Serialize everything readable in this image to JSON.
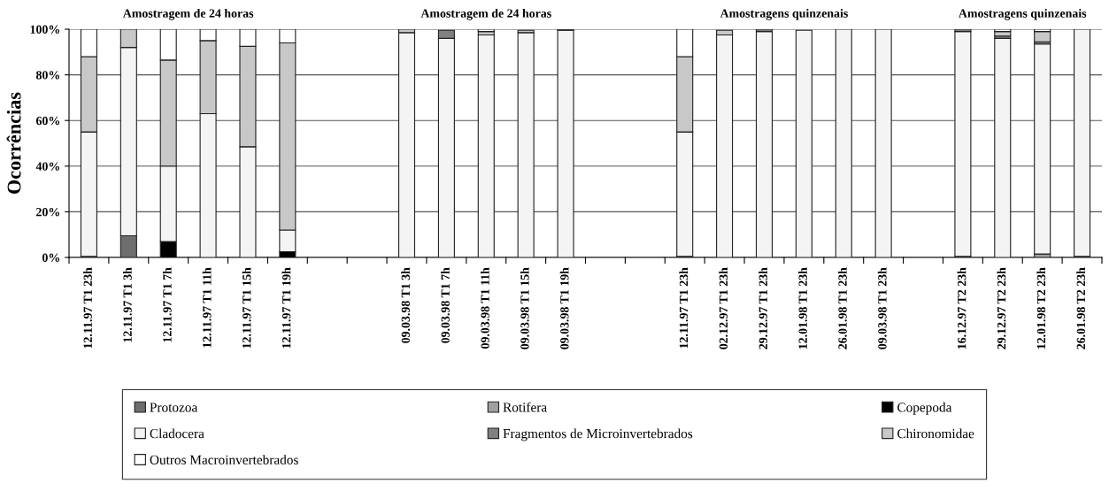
{
  "chart_data": {
    "type": "bar",
    "stacked": true,
    "ylabel": "Ocorrências",
    "annotations": [
      "Amostragem de 24 horas",
      "Amostragem de 24 horas",
      "Amostragens quinzenais",
      "Amostragens quinzenais"
    ],
    "categories": [
      "12.11.97 T1 23h",
      "12.11.97 T1 3h",
      "12.11.97 T1 7h",
      "12.11.97 T1 11h",
      "12.11.97 T1 15h",
      "12.11.97 T1 19h",
      null,
      null,
      "09.03.98 T1 3h",
      "09.03.98 T1 7h",
      "09.03.98 T1 11h",
      "09.03.98 T1 15h",
      "09.03.98 T1 19h",
      null,
      null,
      "12.11.97 T1 23h",
      "02.12.97 T1 23h",
      "29.12.97 T1 23h",
      "12.01.98 T1 23h",
      "26.01.98 T1 23h",
      "09.03.98 T1 23h",
      null,
      "16.12.97 T2 23h",
      "29.12.97 T2 23h",
      "12.01.98 T2 23h",
      "26.01.98 T2 23h"
    ],
    "series": [
      {
        "name": "Protozoa",
        "color": "#6e6e6e",
        "values": [
          0.5,
          9.5,
          0,
          0,
          0,
          0,
          null,
          null,
          0,
          0,
          0,
          0,
          0,
          null,
          null,
          0.5,
          0,
          0,
          0,
          0,
          0,
          null,
          0.5,
          0,
          0,
          0.5
        ]
      },
      {
        "name": "Rotifera",
        "color": "#a0a0a0",
        "values": [
          0,
          0,
          0,
          0,
          0,
          0,
          null,
          null,
          0,
          0,
          0,
          0,
          0,
          null,
          null,
          0,
          0,
          0,
          0,
          0,
          0,
          null,
          0,
          0,
          1.5,
          0
        ]
      },
      {
        "name": "Copepoda",
        "color": "#000000",
        "values": [
          0,
          0,
          7,
          0,
          0,
          2.5,
          null,
          null,
          0,
          0,
          0,
          0,
          0,
          null,
          null,
          0,
          0,
          0,
          0,
          0,
          0,
          null,
          0,
          0,
          0,
          0
        ]
      },
      {
        "name": "Cladocera",
        "color": "#f4f4f4",
        "values": [
          54.5,
          82.5,
          33,
          63,
          48.5,
          9.5,
          null,
          null,
          98.5,
          96,
          97.5,
          98.5,
          99.5,
          null,
          null,
          54.5,
          97.5,
          99,
          99.5,
          100,
          100,
          null,
          98.5,
          96,
          92,
          99.5
        ]
      },
      {
        "name": "Fragmentos de Microinvertebrados",
        "color": "#808080",
        "values": [
          0,
          0,
          0,
          0,
          0,
          0,
          null,
          null,
          0,
          3.5,
          0,
          0,
          0.5,
          null,
          null,
          0,
          0,
          1,
          0,
          0,
          0,
          null,
          1,
          1,
          1,
          0
        ]
      },
      {
        "name": "Chironomidae",
        "color": "#c8c8c8",
        "values": [
          33,
          8,
          46.5,
          32,
          44,
          82,
          null,
          null,
          1.5,
          0,
          1.5,
          1,
          0,
          null,
          null,
          33,
          2,
          0,
          0,
          0,
          0,
          null,
          0,
          2,
          4.5,
          0
        ]
      },
      {
        "name": "Outros Macroinvertebrados",
        "color": "#ffffff",
        "values": [
          12,
          0,
          13.5,
          5,
          7.5,
          6,
          null,
          null,
          0,
          null,
          1,
          null,
          0,
          null,
          null,
          12,
          null,
          0,
          null,
          0,
          0,
          null,
          0,
          1,
          1,
          0
        ]
      }
    ],
    "ylim": [
      0,
      100
    ],
    "yticks": [
      {
        "value": 0,
        "label": "0%"
      },
      {
        "value": 20,
        "label": "20%"
      },
      {
        "value": 40,
        "label": "40%"
      },
      {
        "value": 60,
        "label": "60%"
      },
      {
        "value": 80,
        "label": "80%"
      },
      {
        "value": 100,
        "label": "100%"
      }
    ],
    "grid": "y",
    "legend": "bottom"
  }
}
